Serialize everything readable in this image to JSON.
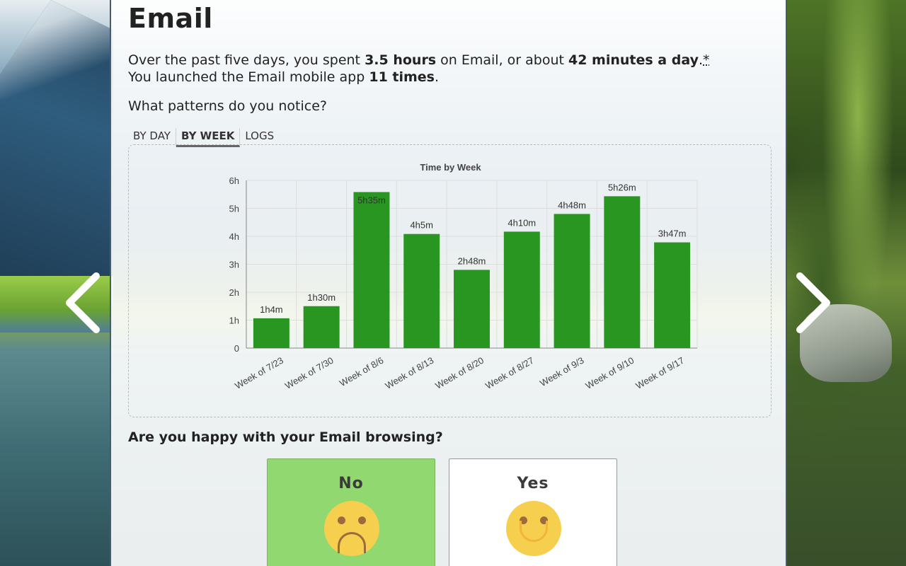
{
  "page": {
    "title": "Email",
    "summary_parts": {
      "p1": "Over the past five days, you spent ",
      "hours": "3.5 hours",
      "p2": " on Email, or about ",
      "per_day": "42 minutes a day",
      "p3": ".",
      "asterisk": "*"
    },
    "launch_parts": {
      "p1": "You launched the Email mobile app ",
      "times": "11 times",
      "p2": "."
    },
    "patterns_prompt": "What patterns do you notice?"
  },
  "tabs": [
    {
      "label": "BY DAY",
      "active": false
    },
    {
      "label": "BY WEEK",
      "active": true
    },
    {
      "label": "LOGS",
      "active": false
    }
  ],
  "chart_data": {
    "type": "bar",
    "title": "Time by Week",
    "categories": [
      "Week of 7/23",
      "Week of 7/30",
      "Week of 8/6",
      "Week of 8/13",
      "Week of 8/20",
      "Week of 8/27",
      "Week of 9/3",
      "Week of 9/10",
      "Week of 9/17"
    ],
    "values": [
      1.0667,
      1.5,
      5.5833,
      4.0833,
      2.8,
      4.1667,
      4.8,
      5.4333,
      3.7833
    ],
    "data_labels": [
      "1h4m",
      "1h30m",
      "5h35m",
      "4h5m",
      "2h48m",
      "4h10m",
      "4h48m",
      "5h26m",
      "3h47m"
    ],
    "y_ticks": [
      "0",
      "1h",
      "2h",
      "3h",
      "4h",
      "5h",
      "6h"
    ],
    "ylim": [
      0,
      6
    ],
    "grid": true,
    "bar_color": "#2a9622"
  },
  "feedback": {
    "question": "Are you happy with your Email browsing?",
    "no_label": "No",
    "yes_label": "Yes",
    "selected": "No"
  },
  "colors": {
    "no_bg": "#92d870",
    "face": "#f7cf4e"
  }
}
